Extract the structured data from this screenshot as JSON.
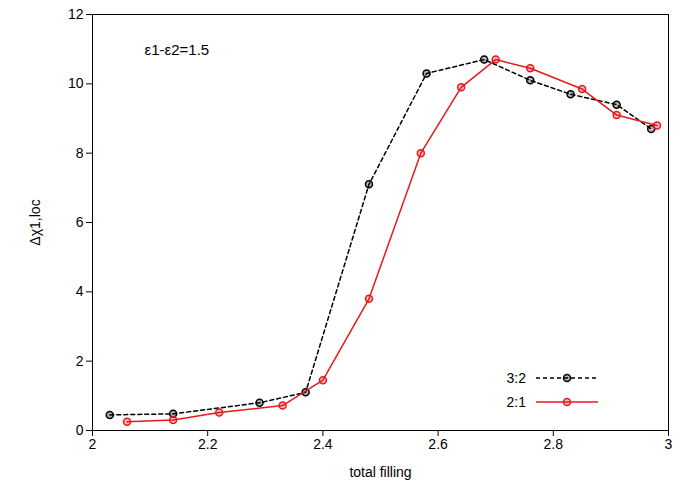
{
  "chart_data": {
    "type": "line",
    "x_label": "total filling",
    "y_label": "Δχ1,loc",
    "annotation": "ε1-ε2=1.5",
    "xlim": [
      2,
      3
    ],
    "xticks": [
      2,
      2.2,
      2.4,
      2.6,
      2.8,
      3
    ],
    "ylim": [
      0,
      12
    ],
    "yticks": [
      0,
      2,
      4,
      6,
      8,
      10,
      12
    ],
    "legend": "bottom-right",
    "grid": false,
    "series": [
      {
        "name": "3:2",
        "color": "#000000",
        "line_style": "dashed",
        "marker": "circle",
        "x": [
          2.03,
          2.14,
          2.29,
          2.37,
          2.48,
          2.58,
          2.68,
          2.76,
          2.83,
          2.91,
          2.97
        ],
        "values": [
          0.45,
          0.48,
          0.8,
          1.1,
          7.1,
          10.3,
          10.7,
          10.1,
          9.7,
          9.4,
          8.7
        ]
      },
      {
        "name": "2:1",
        "color": "#e41a1c",
        "line_style": "solid",
        "marker": "circle",
        "x": [
          2.06,
          2.14,
          2.22,
          2.33,
          2.4,
          2.48,
          2.57,
          2.64,
          2.7,
          2.76,
          2.85,
          2.91,
          2.98
        ],
        "values": [
          0.25,
          0.3,
          0.52,
          0.72,
          1.45,
          3.8,
          8.0,
          9.9,
          10.7,
          10.45,
          9.85,
          9.1,
          8.8
        ]
      }
    ]
  }
}
